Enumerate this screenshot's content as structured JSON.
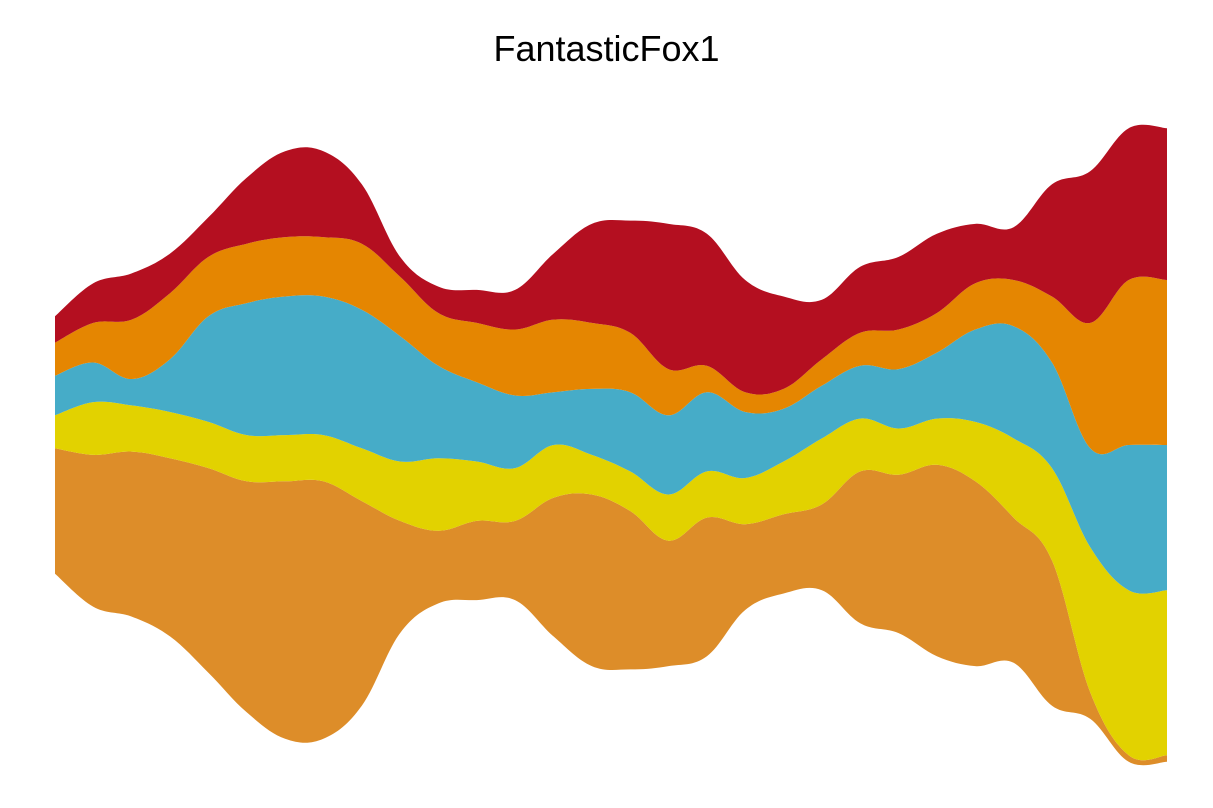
{
  "chart_data": {
    "type": "area",
    "subtype": "streamgraph",
    "title": "FantasticFox1",
    "xlabel": "",
    "ylabel": "",
    "grid": false,
    "legend": "none",
    "axes_visible": false,
    "baseline": "centered",
    "x": [
      1,
      2,
      3,
      4,
      5,
      6,
      7,
      8,
      9,
      10,
      11,
      12,
      13,
      14,
      15,
      16,
      17,
      18,
      19,
      20,
      21,
      22,
      23,
      24,
      25,
      26,
      27,
      28,
      29,
      30
    ],
    "series": [
      {
        "color": "#DD8D29",
        "values": [
          9.5,
          11.5,
          12.5,
          13.5,
          15.5,
          17.5,
          19.5,
          19.5,
          15.5,
          8.5,
          5.5,
          6.0,
          6.0,
          10.5,
          13.0,
          12.0,
          9.5,
          10.5,
          6.5,
          6.0,
          6.5,
          11.5,
          12.0,
          14.5,
          14.0,
          11.0,
          11.0,
          2.0,
          0.5,
          0.5
        ]
      },
      {
        "color": "#E2D200",
        "values": [
          2.5,
          4.0,
          3.5,
          3.5,
          3.5,
          3.5,
          3.5,
          3.5,
          4.0,
          4.5,
          5.5,
          4.5,
          4.0,
          4.0,
          3.0,
          3.0,
          3.5,
          3.5,
          3.5,
          4.0,
          5.0,
          4.0,
          3.5,
          3.5,
          4.5,
          6.0,
          7.0,
          11.0,
          12.5,
          12.5
        ]
      },
      {
        "color": "#46ACC8",
        "values": [
          3.0,
          3.0,
          2.0,
          4.0,
          8.0,
          10.0,
          10.5,
          10.5,
          10.5,
          9.5,
          7.0,
          6.0,
          5.5,
          4.0,
          5.0,
          6.0,
          6.0,
          6.0,
          5.0,
          4.0,
          4.0,
          4.0,
          4.5,
          5.0,
          7.0,
          8.5,
          8.0,
          7.5,
          11.0,
          11.0
        ]
      },
      {
        "color": "#E58601",
        "values": [
          2.5,
          3.0,
          4.5,
          5.0,
          4.5,
          4.5,
          4.5,
          4.5,
          5.0,
          4.5,
          4.0,
          4.5,
          5.0,
          5.5,
          5.0,
          4.5,
          3.5,
          2.0,
          1.5,
          1.5,
          2.0,
          2.5,
          3.0,
          3.0,
          3.5,
          3.5,
          5.0,
          9.5,
          12.5,
          12.5
        ]
      },
      {
        "color": "#B40F20",
        "values": [
          2.0,
          3.0,
          3.5,
          3.0,
          3.0,
          5.0,
          6.5,
          6.5,
          4.5,
          1.5,
          2.0,
          2.5,
          3.0,
          5.0,
          7.5,
          8.5,
          11.0,
          10.0,
          8.5,
          7.0,
          4.5,
          5.0,
          5.5,
          6.0,
          4.5,
          4.0,
          8.5,
          11.5,
          11.5,
          11.5
        ]
      }
    ]
  }
}
